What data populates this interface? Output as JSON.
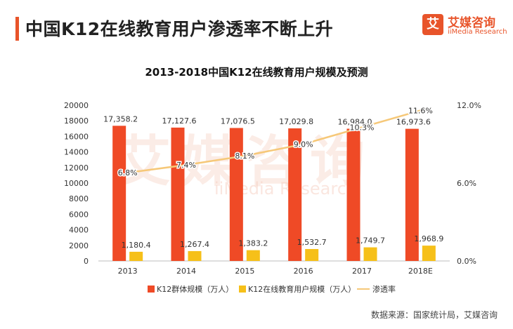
{
  "header": {
    "title": "中国K12在线教育用户渗透率不断上升",
    "logo_cn": "艾媒咨询",
    "logo_en": "iiMedia Research",
    "logo_glyph": "艾"
  },
  "watermark": {
    "cn": "艾媒咨询",
    "en": "iiMedia Research"
  },
  "colors": {
    "accent": "#e8542a",
    "bar_k12": "#ef4a26",
    "bar_online": "#f6c019",
    "line": "#f6c878"
  },
  "chart_data": {
    "type": "bar",
    "title": "2013-2018中国K12在线教育用户规模及预测",
    "categories": [
      "2013",
      "2014",
      "2015",
      "2016",
      "2017",
      "2018E"
    ],
    "series": [
      {
        "name": "K12群体规模（万人）",
        "type": "bar",
        "axis": "left",
        "values": [
          17358.2,
          17127.6,
          17076.5,
          17029.8,
          16984.0,
          16973.6
        ],
        "labels": [
          "17,358.2",
          "17,127.6",
          "17,076.5",
          "17,029.8",
          "16,984.0",
          "16,973.6"
        ]
      },
      {
        "name": "K12在线教育用户规模（万人）",
        "type": "bar",
        "axis": "left",
        "values": [
          1180.4,
          1267.4,
          1383.2,
          1532.7,
          1749.7,
          1968.9
        ],
        "labels": [
          "1,180.4",
          "1,267.4",
          "1,383.2",
          "1,532.7",
          "1,749.7",
          "1,968.9"
        ]
      },
      {
        "name": "渗透率",
        "type": "line",
        "axis": "right",
        "values": [
          6.8,
          7.4,
          8.1,
          9.0,
          10.3,
          11.6
        ],
        "labels": [
          "6.8%",
          "7.4%",
          "8.1%",
          "9.0%",
          "10.3%",
          "11.6%"
        ]
      }
    ],
    "y_left": {
      "min": 0,
      "max": 20000,
      "ticks": [
        "0",
        "2000",
        "4000",
        "6000",
        "8000",
        "10000",
        "12000",
        "14000",
        "16000",
        "18000",
        "20000"
      ]
    },
    "y_right": {
      "min": 0,
      "max": 12,
      "ticks": [
        0,
        6,
        12
      ],
      "tick_labels": [
        "0.0%",
        "6.0%",
        "12.0%"
      ]
    },
    "legend_position": "bottom",
    "grid": false
  },
  "source": "数据来源：国家统计局，艾媒咨询"
}
